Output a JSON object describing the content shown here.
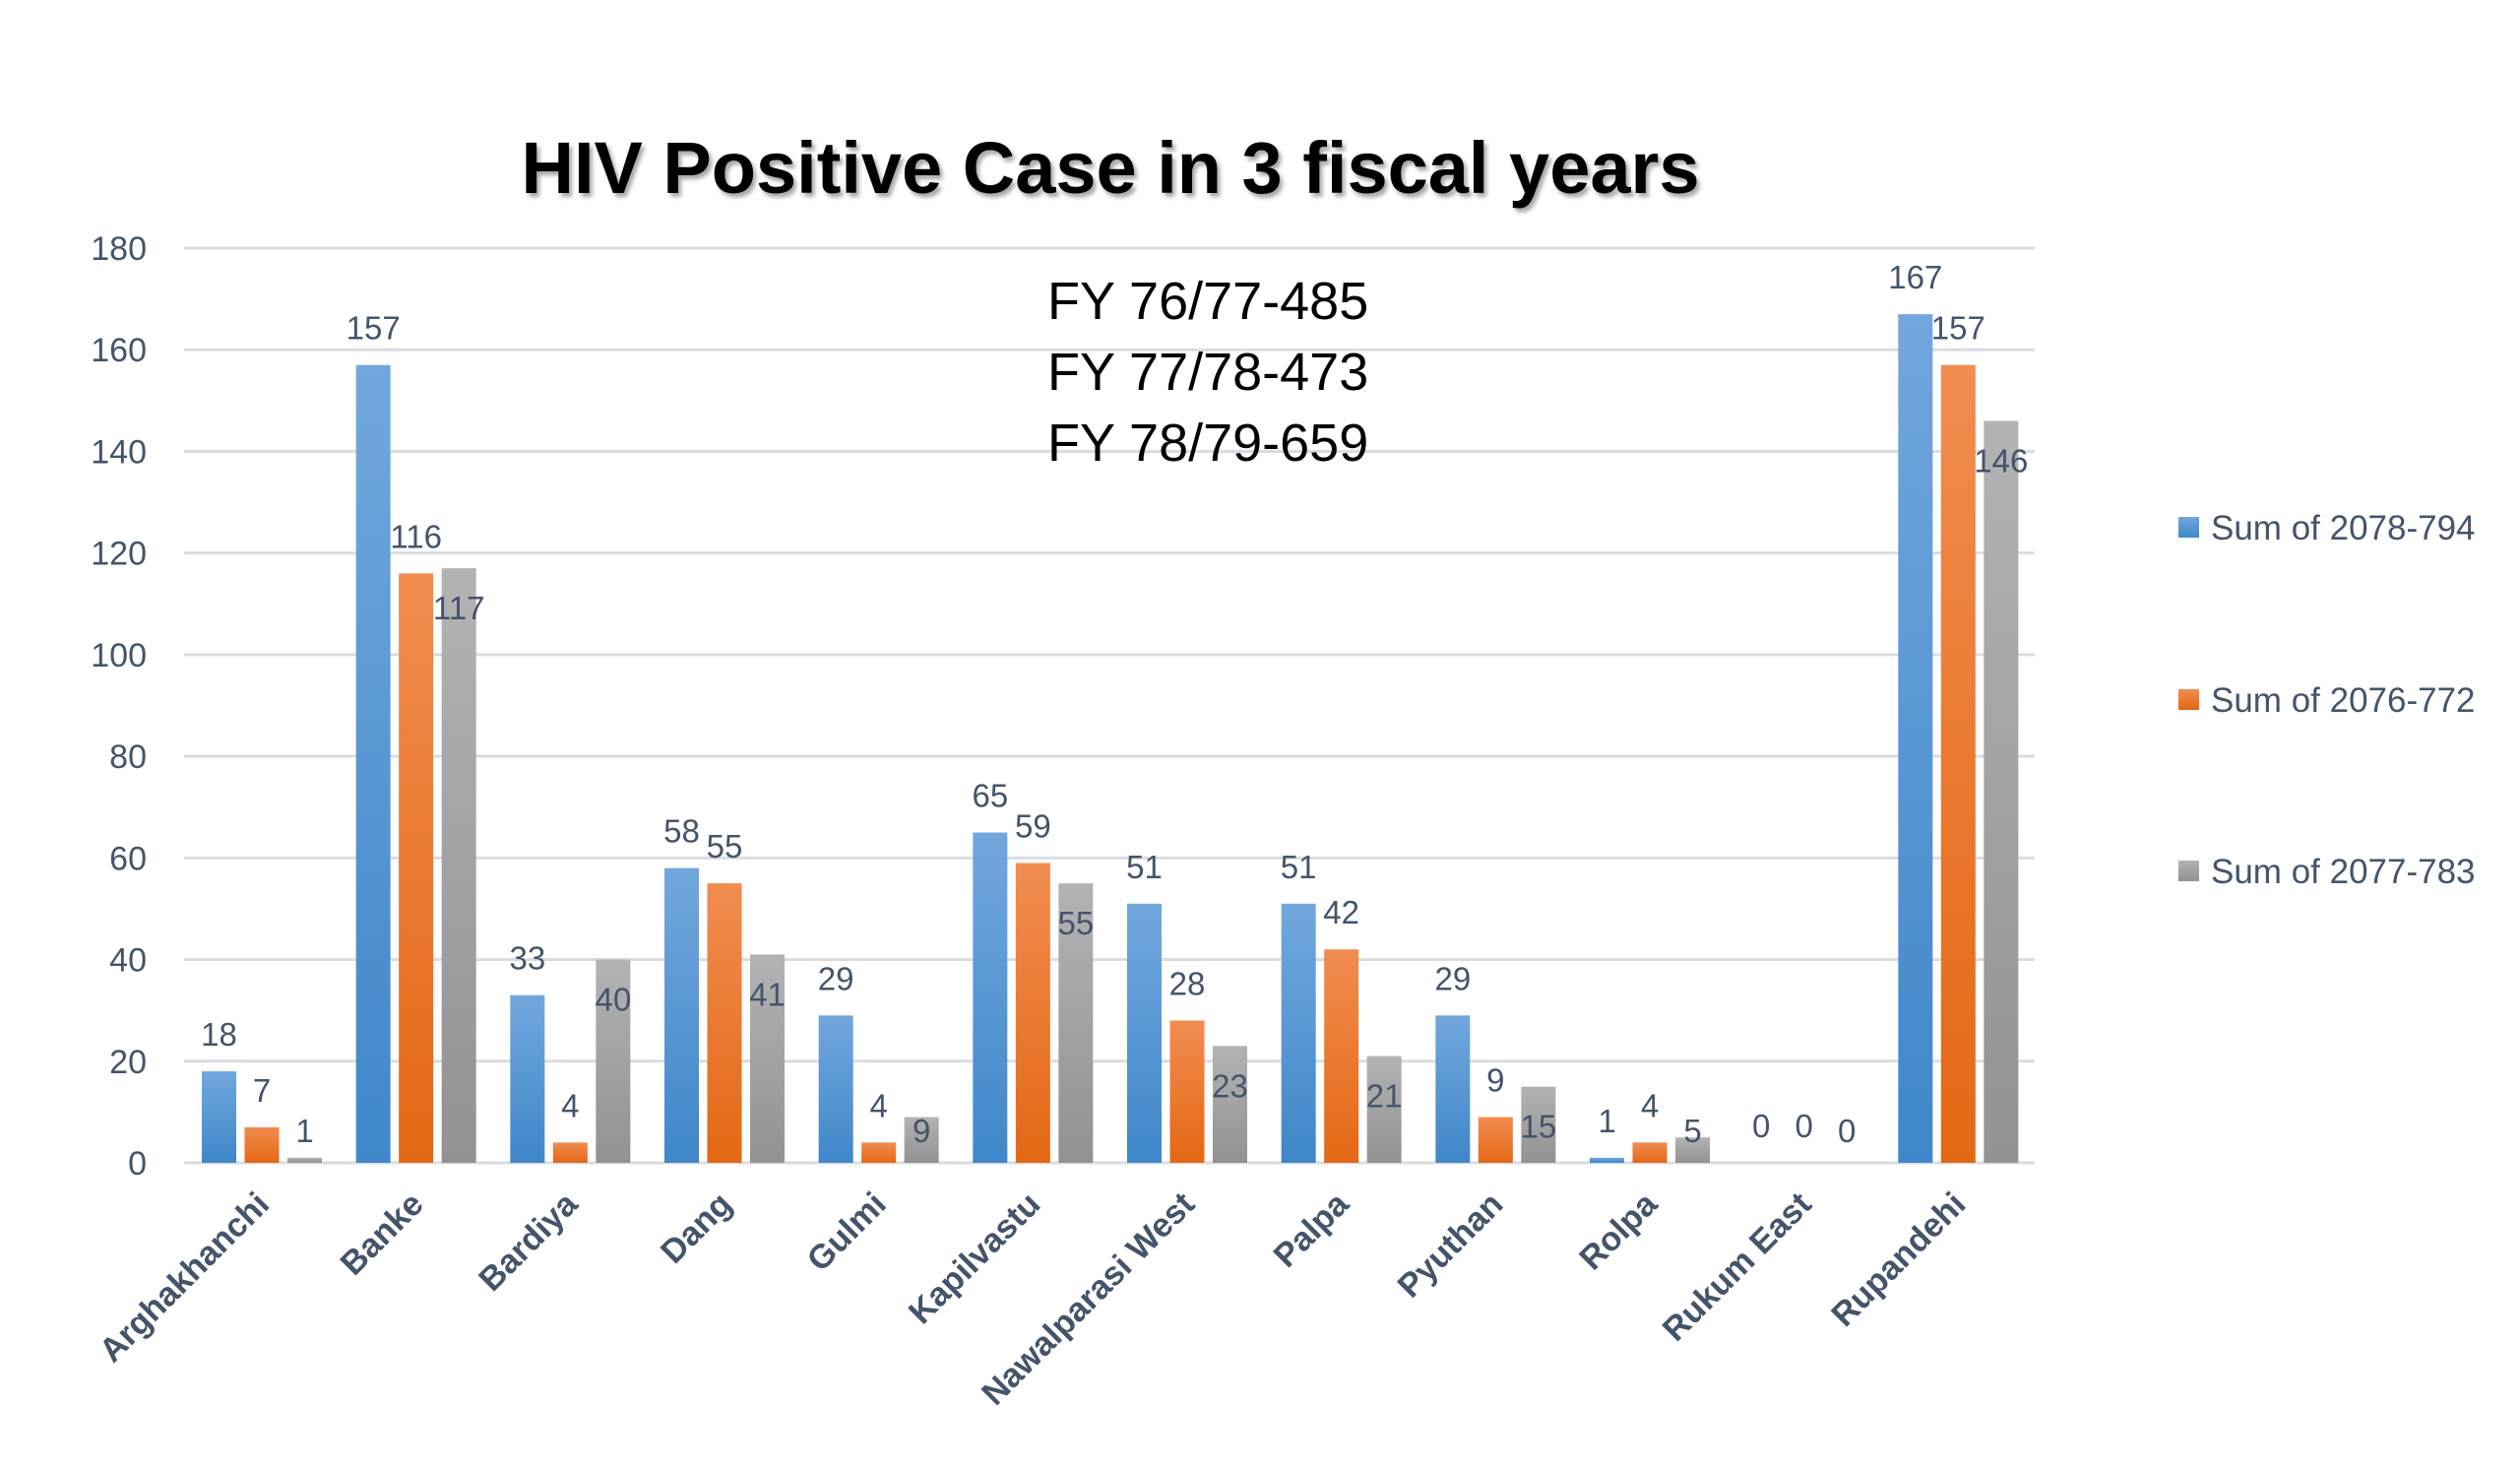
{
  "chart_data": {
    "type": "bar",
    "title": "HIV Positive Case in 3 fiscal years",
    "annotations": [
      "FY 76/77-485",
      "FY 77/78-473",
      "FY 78/79-659"
    ],
    "xlabel": "",
    "ylabel": "",
    "ylim": [
      0,
      180
    ],
    "yticks": [
      0,
      20,
      40,
      60,
      80,
      100,
      120,
      140,
      160,
      180
    ],
    "grid": true,
    "legend_position": "right",
    "categories": [
      "Arghakhanchi",
      "Banke",
      "Bardiya",
      "Dang",
      "Gulmi",
      "Kapilvastu",
      "Nawalparasi West",
      "Palpa",
      "Pyuthan",
      "Rolpa",
      "Rukum East",
      "Rupandehi"
    ],
    "series": [
      {
        "name": "Sum of 2078-794",
        "color": "#5B9BD5",
        "values": [
          18,
          157,
          33,
          58,
          29,
          65,
          51,
          51,
          29,
          1,
          0,
          167
        ]
      },
      {
        "name": "Sum of 2076-772",
        "color": "#ED7D31",
        "values": [
          7,
          116,
          4,
          55,
          4,
          59,
          28,
          42,
          9,
          4,
          0,
          157
        ]
      },
      {
        "name": "Sum of 2077-783",
        "color": "#A5A5A5",
        "values": [
          1,
          117,
          40,
          41,
          9,
          55,
          23,
          21,
          15,
          5,
          0,
          146
        ]
      }
    ]
  }
}
